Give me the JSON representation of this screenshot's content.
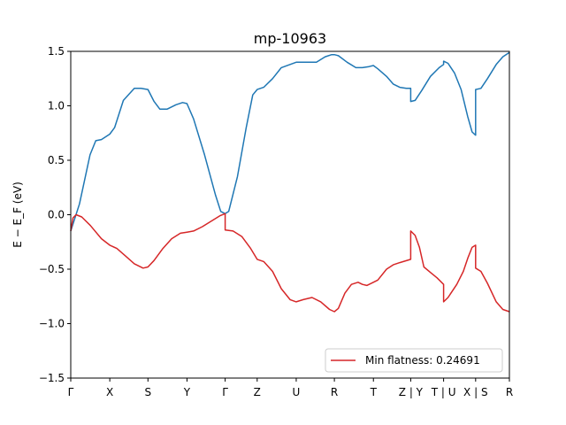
{
  "chart_data": {
    "type": "line",
    "title": "mp-10963",
    "ylabel": "E − E_F (eV)",
    "xlabel": "",
    "ylim": [
      -1.5,
      1.5
    ],
    "xlim": [
      0,
      100
    ],
    "grid": false,
    "legend_position": "lower-right",
    "y_ticks": [
      {
        "value": 1.5,
        "label": "1.5"
      },
      {
        "value": 1.0,
        "label": "1.0"
      },
      {
        "value": 0.5,
        "label": "0.5"
      },
      {
        "value": 0.0,
        "label": "0.0"
      },
      {
        "value": -0.5,
        "label": "−0.5"
      },
      {
        "value": -1.0,
        "label": "−1.0"
      },
      {
        "value": -1.5,
        "label": "−1.5"
      }
    ],
    "x_ticks": [
      {
        "value": 0,
        "label": "Γ"
      },
      {
        "value": 8.9,
        "label": "X"
      },
      {
        "value": 17.6,
        "label": "S"
      },
      {
        "value": 26.5,
        "label": "Y"
      },
      {
        "value": 35.2,
        "label": "Γ"
      },
      {
        "value": 42.5,
        "label": "Z"
      },
      {
        "value": 51.4,
        "label": "U"
      },
      {
        "value": 60.1,
        "label": "R"
      },
      {
        "value": 69.0,
        "label": "T"
      },
      {
        "value": 77.5,
        "label": "Z | Y"
      },
      {
        "value": 85.0,
        "label": "T | U"
      },
      {
        "value": 92.3,
        "label": "X | S"
      },
      {
        "value": 100,
        "label": "R"
      }
    ],
    "series": [
      {
        "color": "#1f77b4",
        "points": [
          [
            0,
            -0.15
          ],
          [
            2,
            0.1
          ],
          [
            4.4,
            0.55
          ],
          [
            5.7,
            0.68
          ],
          [
            7,
            0.69
          ],
          [
            8.9,
            0.74
          ],
          [
            10,
            0.8
          ],
          [
            12,
            1.05
          ],
          [
            14.5,
            1.16
          ],
          [
            16,
            1.16
          ],
          [
            17.6,
            1.15
          ],
          [
            19,
            1.04
          ],
          [
            20.3,
            0.97
          ],
          [
            22,
            0.97
          ],
          [
            24,
            1.01
          ],
          [
            25.5,
            1.03
          ],
          [
            26.5,
            1.02
          ],
          [
            28,
            0.88
          ],
          [
            30.5,
            0.55
          ],
          [
            33,
            0.18
          ],
          [
            34.2,
            0.03
          ],
          [
            35.2,
            0.01
          ],
          [
            36,
            0.03
          ],
          [
            38,
            0.35
          ],
          [
            40,
            0.8
          ],
          [
            41.5,
            1.1
          ],
          [
            42.5,
            1.15
          ],
          [
            44,
            1.17
          ],
          [
            46,
            1.25
          ],
          [
            48,
            1.35
          ],
          [
            51.4,
            1.4
          ],
          [
            54,
            1.4
          ],
          [
            56,
            1.4
          ],
          [
            58,
            1.45
          ],
          [
            59.5,
            1.47
          ],
          [
            60.1,
            1.47
          ],
          [
            61,
            1.46
          ],
          [
            63,
            1.4
          ],
          [
            65,
            1.35
          ],
          [
            66.5,
            1.35
          ],
          [
            68,
            1.36
          ],
          [
            69,
            1.37
          ],
          [
            70,
            1.34
          ],
          [
            72,
            1.27
          ],
          [
            73.5,
            1.2
          ],
          [
            75,
            1.17
          ],
          [
            76.5,
            1.16
          ],
          [
            77.5,
            1.16
          ],
          [
            77.5,
            1.04
          ],
          [
            78.5,
            1.05
          ],
          [
            80,
            1.14
          ],
          [
            82,
            1.27
          ],
          [
            84,
            1.35
          ],
          [
            85,
            1.38
          ],
          [
            85,
            1.41
          ],
          [
            86,
            1.39
          ],
          [
            87.5,
            1.3
          ],
          [
            89,
            1.15
          ],
          [
            90.5,
            0.9
          ],
          [
            91.5,
            0.76
          ],
          [
            92.3,
            0.73
          ],
          [
            92.3,
            1.15
          ],
          [
            93.5,
            1.16
          ],
          [
            95,
            1.25
          ],
          [
            97,
            1.38
          ],
          [
            98.5,
            1.45
          ],
          [
            100,
            1.49
          ]
        ]
      },
      {
        "name": "Min flatness: 0.24691",
        "color": "#d62728",
        "points": [
          [
            0,
            -0.15
          ],
          [
            0.5,
            -0.03
          ],
          [
            1.2,
            0.0
          ],
          [
            2.5,
            -0.02
          ],
          [
            4.5,
            -0.1
          ],
          [
            7,
            -0.22
          ],
          [
            8.9,
            -0.28
          ],
          [
            10.5,
            -0.31
          ],
          [
            12.5,
            -0.38
          ],
          [
            14.5,
            -0.45
          ],
          [
            16.5,
            -0.49
          ],
          [
            17.6,
            -0.48
          ],
          [
            19,
            -0.42
          ],
          [
            21,
            -0.31
          ],
          [
            23,
            -0.22
          ],
          [
            25,
            -0.17
          ],
          [
            26.5,
            -0.16
          ],
          [
            28,
            -0.15
          ],
          [
            30,
            -0.11
          ],
          [
            32,
            -0.06
          ],
          [
            34,
            -0.01
          ],
          [
            35.2,
            0.01
          ],
          [
            35.2,
            -0.14
          ],
          [
            37,
            -0.15
          ],
          [
            39,
            -0.2
          ],
          [
            41,
            -0.31
          ],
          [
            42.5,
            -0.41
          ],
          [
            44,
            -0.43
          ],
          [
            46,
            -0.52
          ],
          [
            48,
            -0.68
          ],
          [
            50,
            -0.78
          ],
          [
            51.4,
            -0.8
          ],
          [
            53,
            -0.78
          ],
          [
            55,
            -0.76
          ],
          [
            57,
            -0.8
          ],
          [
            59,
            -0.87
          ],
          [
            60.1,
            -0.89
          ],
          [
            61,
            -0.86
          ],
          [
            62.5,
            -0.72
          ],
          [
            64,
            -0.64
          ],
          [
            65.5,
            -0.62
          ],
          [
            66.5,
            -0.64
          ],
          [
            67.5,
            -0.65
          ],
          [
            69,
            -0.62
          ],
          [
            70,
            -0.6
          ],
          [
            72,
            -0.5
          ],
          [
            73.5,
            -0.46
          ],
          [
            75,
            -0.44
          ],
          [
            77.5,
            -0.41
          ],
          [
            77.5,
            -0.15
          ],
          [
            78.5,
            -0.19
          ],
          [
            79.5,
            -0.3
          ],
          [
            80.5,
            -0.48
          ],
          [
            82,
            -0.53
          ],
          [
            83.5,
            -0.58
          ],
          [
            85,
            -0.64
          ],
          [
            85,
            -0.8
          ],
          [
            86,
            -0.76
          ],
          [
            88,
            -0.64
          ],
          [
            89.5,
            -0.52
          ],
          [
            90.5,
            -0.4
          ],
          [
            91.5,
            -0.3
          ],
          [
            92.3,
            -0.28
          ],
          [
            92.3,
            -0.49
          ],
          [
            93.5,
            -0.52
          ],
          [
            95,
            -0.63
          ],
          [
            97,
            -0.8
          ],
          [
            98.5,
            -0.87
          ],
          [
            100,
            -0.89
          ]
        ]
      }
    ]
  }
}
